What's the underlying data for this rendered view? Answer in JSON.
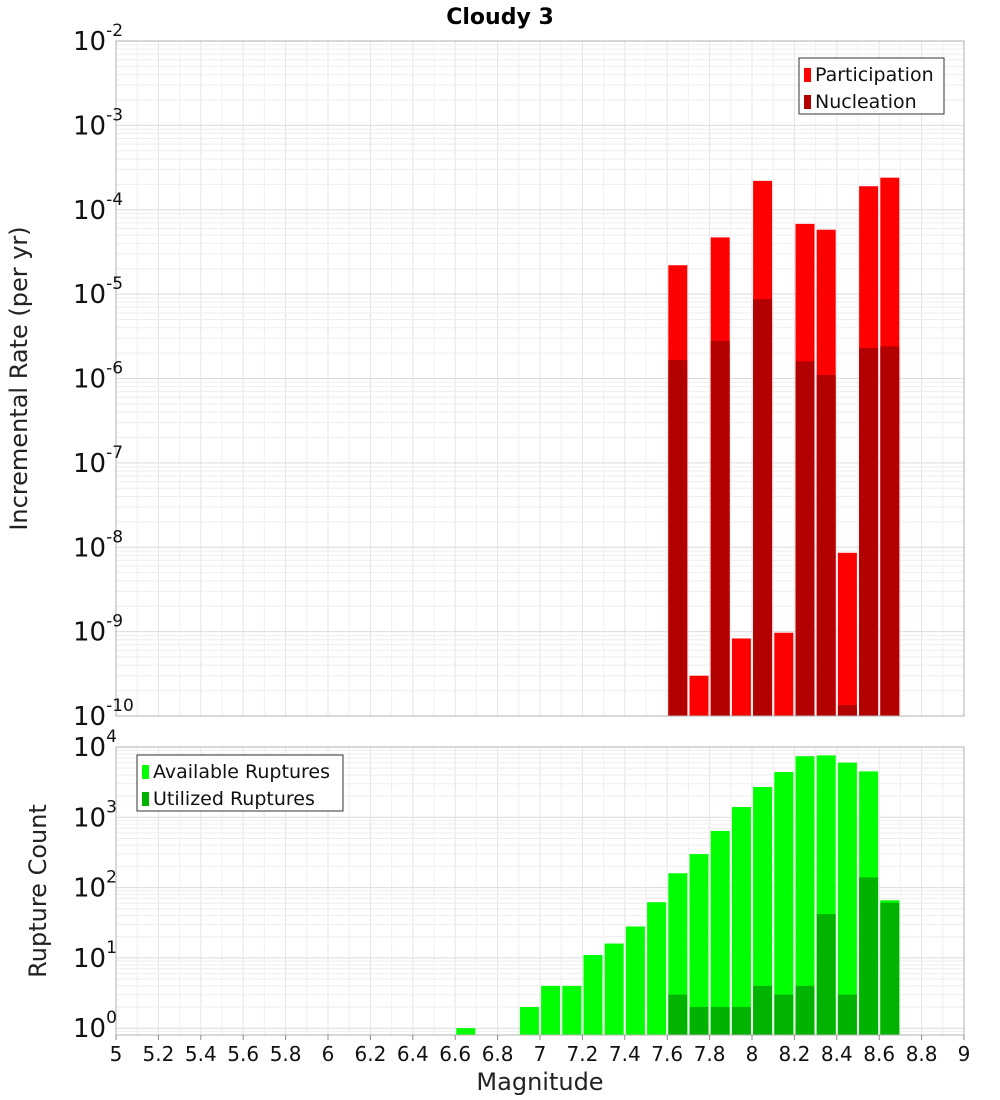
{
  "chart_data": [
    {
      "type": "bar",
      "title": "Cloudy 3",
      "xlabel": "",
      "ylabel": "Incremental Rate (per yr)",
      "yscale": "log",
      "xlim": [
        5,
        9
      ],
      "ylim": [
        1e-10,
        0.01
      ],
      "grid": true,
      "legend_position": "top-right",
      "x": [
        7.65,
        7.75,
        7.85,
        7.95,
        8.05,
        8.15,
        8.25,
        8.35,
        8.45,
        8.55,
        8.65
      ],
      "series": [
        {
          "name": "Participation",
          "color": "#ff0000",
          "values": [
            2.2e-05,
            3e-10,
            4.7e-05,
            8.3e-10,
            0.00022,
            9.7e-10,
            6.8e-05,
            5.8e-05,
            8.6e-09,
            0.00019,
            0.00024
          ]
        },
        {
          "name": "Nucleation",
          "color": "#b30000",
          "values": [
            1.65e-06,
            null,
            2.8e-06,
            null,
            8.7e-06,
            null,
            1.6e-06,
            1.1e-06,
            1.35e-10,
            2.3e-06,
            2.4e-06
          ]
        }
      ]
    },
    {
      "type": "bar",
      "title": "",
      "xlabel": "Magnitude",
      "ylabel": "Rupture Count",
      "yscale": "log",
      "xlim": [
        5,
        9
      ],
      "ylim": [
        0.8,
        10000.0
      ],
      "grid": true,
      "legend_position": "top-left",
      "x": [
        6.65,
        6.95,
        7.05,
        7.15,
        7.25,
        7.35,
        7.45,
        7.55,
        7.65,
        7.75,
        7.85,
        7.95,
        8.05,
        8.15,
        8.25,
        8.35,
        8.45,
        8.55,
        8.65
      ],
      "series": [
        {
          "name": "Available Ruptures",
          "color": "#00ff00",
          "values": [
            1,
            2,
            4,
            4,
            11,
            16,
            28,
            62,
            160,
            300,
            640,
            1400,
            2700,
            4400,
            7400,
            7600,
            6000,
            4500,
            66
          ]
        },
        {
          "name": "Utilized Ruptures",
          "color": "#00b300",
          "values": [
            null,
            null,
            null,
            null,
            null,
            null,
            null,
            null,
            3,
            2,
            2,
            2,
            4,
            3,
            4,
            42,
            3,
            140,
            61
          ]
        }
      ]
    }
  ],
  "x_ticks": [
    "5",
    "5.2",
    "5.4",
    "5.6",
    "5.8",
    "6",
    "6.2",
    "6.4",
    "6.6",
    "6.8",
    "7",
    "7.2",
    "7.4",
    "7.6",
    "7.8",
    "8",
    "8.2",
    "8.4",
    "8.6",
    "8.8",
    "9"
  ],
  "top_y_ticks": [
    "-10",
    "-9",
    "-8",
    "-7",
    "-6",
    "-5",
    "-4",
    "-3",
    "-2"
  ],
  "bottom_y_ticks": [
    "0",
    "1",
    "2",
    "3",
    "4"
  ],
  "decade_base": "10"
}
